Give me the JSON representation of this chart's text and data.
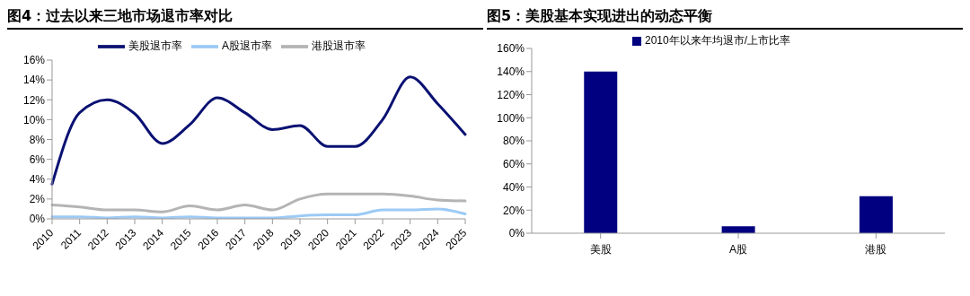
{
  "chart_data": [
    {
      "type": "line",
      "title": "图4：过去以来三地市场退市率对比",
      "categories": [
        "2010",
        "2011",
        "2012",
        "2013",
        "2014",
        "2015",
        "2016",
        "2017",
        "2018",
        "2019",
        "2020",
        "2021",
        "2022",
        "2023",
        "2024",
        "2025"
      ],
      "series": [
        {
          "name": "美股退市率",
          "color": "#0a1172",
          "values": [
            3.5,
            10.7,
            12.0,
            10.6,
            7.6,
            9.5,
            12.2,
            10.7,
            9.0,
            9.4,
            7.3,
            7.3,
            10.0,
            14.3,
            11.6,
            8.5
          ]
        },
        {
          "name": "A股退市率",
          "color": "#9ccaf5",
          "values": [
            0.2,
            0.2,
            0.1,
            0.2,
            0.1,
            0.2,
            0.1,
            0.1,
            0.1,
            0.3,
            0.4,
            0.4,
            0.9,
            0.9,
            1.0,
            0.5
          ]
        },
        {
          "name": "港股退市率",
          "color": "#b4b4b4",
          "values": [
            1.4,
            1.2,
            0.9,
            0.9,
            0.7,
            1.3,
            0.9,
            1.4,
            0.9,
            2.0,
            2.5,
            2.5,
            2.5,
            2.3,
            1.9,
            1.8
          ]
        }
      ],
      "ylim": [
        0,
        16
      ],
      "yticks": [
        {
          "value": 0,
          "label": "0%"
        },
        {
          "value": 2,
          "label": "2%"
        },
        {
          "value": 4,
          "label": "4%"
        },
        {
          "value": 6,
          "label": "6%"
        },
        {
          "value": 8,
          "label": "8%"
        },
        {
          "value": 10,
          "label": "10%"
        },
        {
          "value": 12,
          "label": "12%"
        },
        {
          "value": 14,
          "label": "14%"
        },
        {
          "value": 16,
          "label": "16%"
        }
      ],
      "legend": "top",
      "grid": false,
      "marker": "none",
      "line_style": "solid"
    },
    {
      "type": "bar",
      "title": "图5：美股基本实现进出的动态平衡",
      "categories": [
        "美股",
        "A股",
        "港股"
      ],
      "series": [
        {
          "name": "2010年以来年均退市/上市比率",
          "color": "#000080",
          "values": [
            140,
            6,
            32
          ]
        }
      ],
      "ylim": [
        0,
        160
      ],
      "yticks": [
        {
          "value": 0,
          "label": "0%"
        },
        {
          "value": 20,
          "label": "20%"
        },
        {
          "value": 40,
          "label": "40%"
        },
        {
          "value": 60,
          "label": "60%"
        },
        {
          "value": 80,
          "label": "80%"
        },
        {
          "value": 100,
          "label": "100%"
        },
        {
          "value": 120,
          "label": "120%"
        },
        {
          "value": 140,
          "label": "140%"
        },
        {
          "value": 160,
          "label": "160%"
        }
      ],
      "legend": "top",
      "grid": false
    }
  ]
}
